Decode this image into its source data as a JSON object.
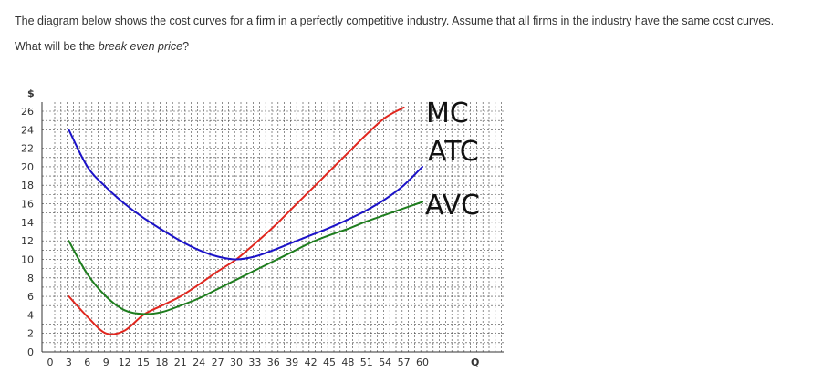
{
  "question": {
    "line1": "The diagram below shows the cost curves for a firm in a perfectly competitive industry.  Assume that all firms in the industry have the same cost curves.",
    "line2_prefix": "What will be the ",
    "line2_emphasis": "break even price",
    "line2_suffix": "?"
  },
  "chart_data": {
    "type": "line",
    "title": "",
    "ylabel": "$",
    "xlabel": "Q",
    "xlim": [
      0,
      60
    ],
    "ylim": [
      0,
      26
    ],
    "grid": true,
    "x_ticks": [
      "0",
      "3",
      "6",
      "9",
      "12",
      "15",
      "18",
      "21",
      "24",
      "27",
      "30",
      "33",
      "36",
      "39",
      "42",
      "45",
      "48",
      "51",
      "54",
      "57",
      "60"
    ],
    "y_ticks": [
      "0",
      "2",
      "4",
      "6",
      "8",
      "10",
      "12",
      "14",
      "16",
      "18",
      "20",
      "22",
      "24",
      "26"
    ],
    "series": [
      {
        "name": "MC",
        "color": "#e0261e",
        "x": [
          3,
          6,
          9,
          12,
          15,
          18,
          21,
          24,
          27,
          30,
          33,
          36,
          39,
          42,
          45,
          48,
          51,
          54,
          57
        ],
        "y": [
          6,
          3.8,
          2,
          2.3,
          4,
          5,
          6,
          7.3,
          8.7,
          10,
          11.7,
          13.5,
          15.5,
          17.5,
          19.5,
          21.5,
          23.5,
          25.3,
          26.4
        ]
      },
      {
        "name": "ATC",
        "color": "#1b12c8",
        "x": [
          3,
          6,
          9,
          12,
          15,
          18,
          21,
          24,
          27,
          30,
          33,
          36,
          39,
          42,
          45,
          48,
          51,
          54,
          57,
          60
        ],
        "y": [
          24,
          20,
          17.8,
          16,
          14.5,
          13.2,
          12,
          11,
          10.3,
          10,
          10.3,
          11,
          11.8,
          12.6,
          13.4,
          14.3,
          15.3,
          16.5,
          18,
          20
        ]
      },
      {
        "name": "AVC",
        "color": "#1e7d1e",
        "x": [
          3,
          6,
          9,
          12,
          15,
          18,
          21,
          24,
          27,
          30,
          33,
          36,
          39,
          42,
          45,
          48,
          51,
          54,
          57,
          60
        ],
        "y": [
          12,
          8.4,
          6,
          4.5,
          4.1,
          4.3,
          5,
          5.8,
          6.8,
          7.8,
          8.8,
          9.8,
          10.8,
          11.8,
          12.6,
          13.3,
          14.1,
          14.8,
          15.5,
          16.2
        ]
      }
    ],
    "annotations": [
      {
        "text": "MC",
        "color": "#111111"
      },
      {
        "text": "ATC",
        "color": "#111111"
      },
      {
        "text": "AVC",
        "color": "#111111"
      }
    ]
  }
}
